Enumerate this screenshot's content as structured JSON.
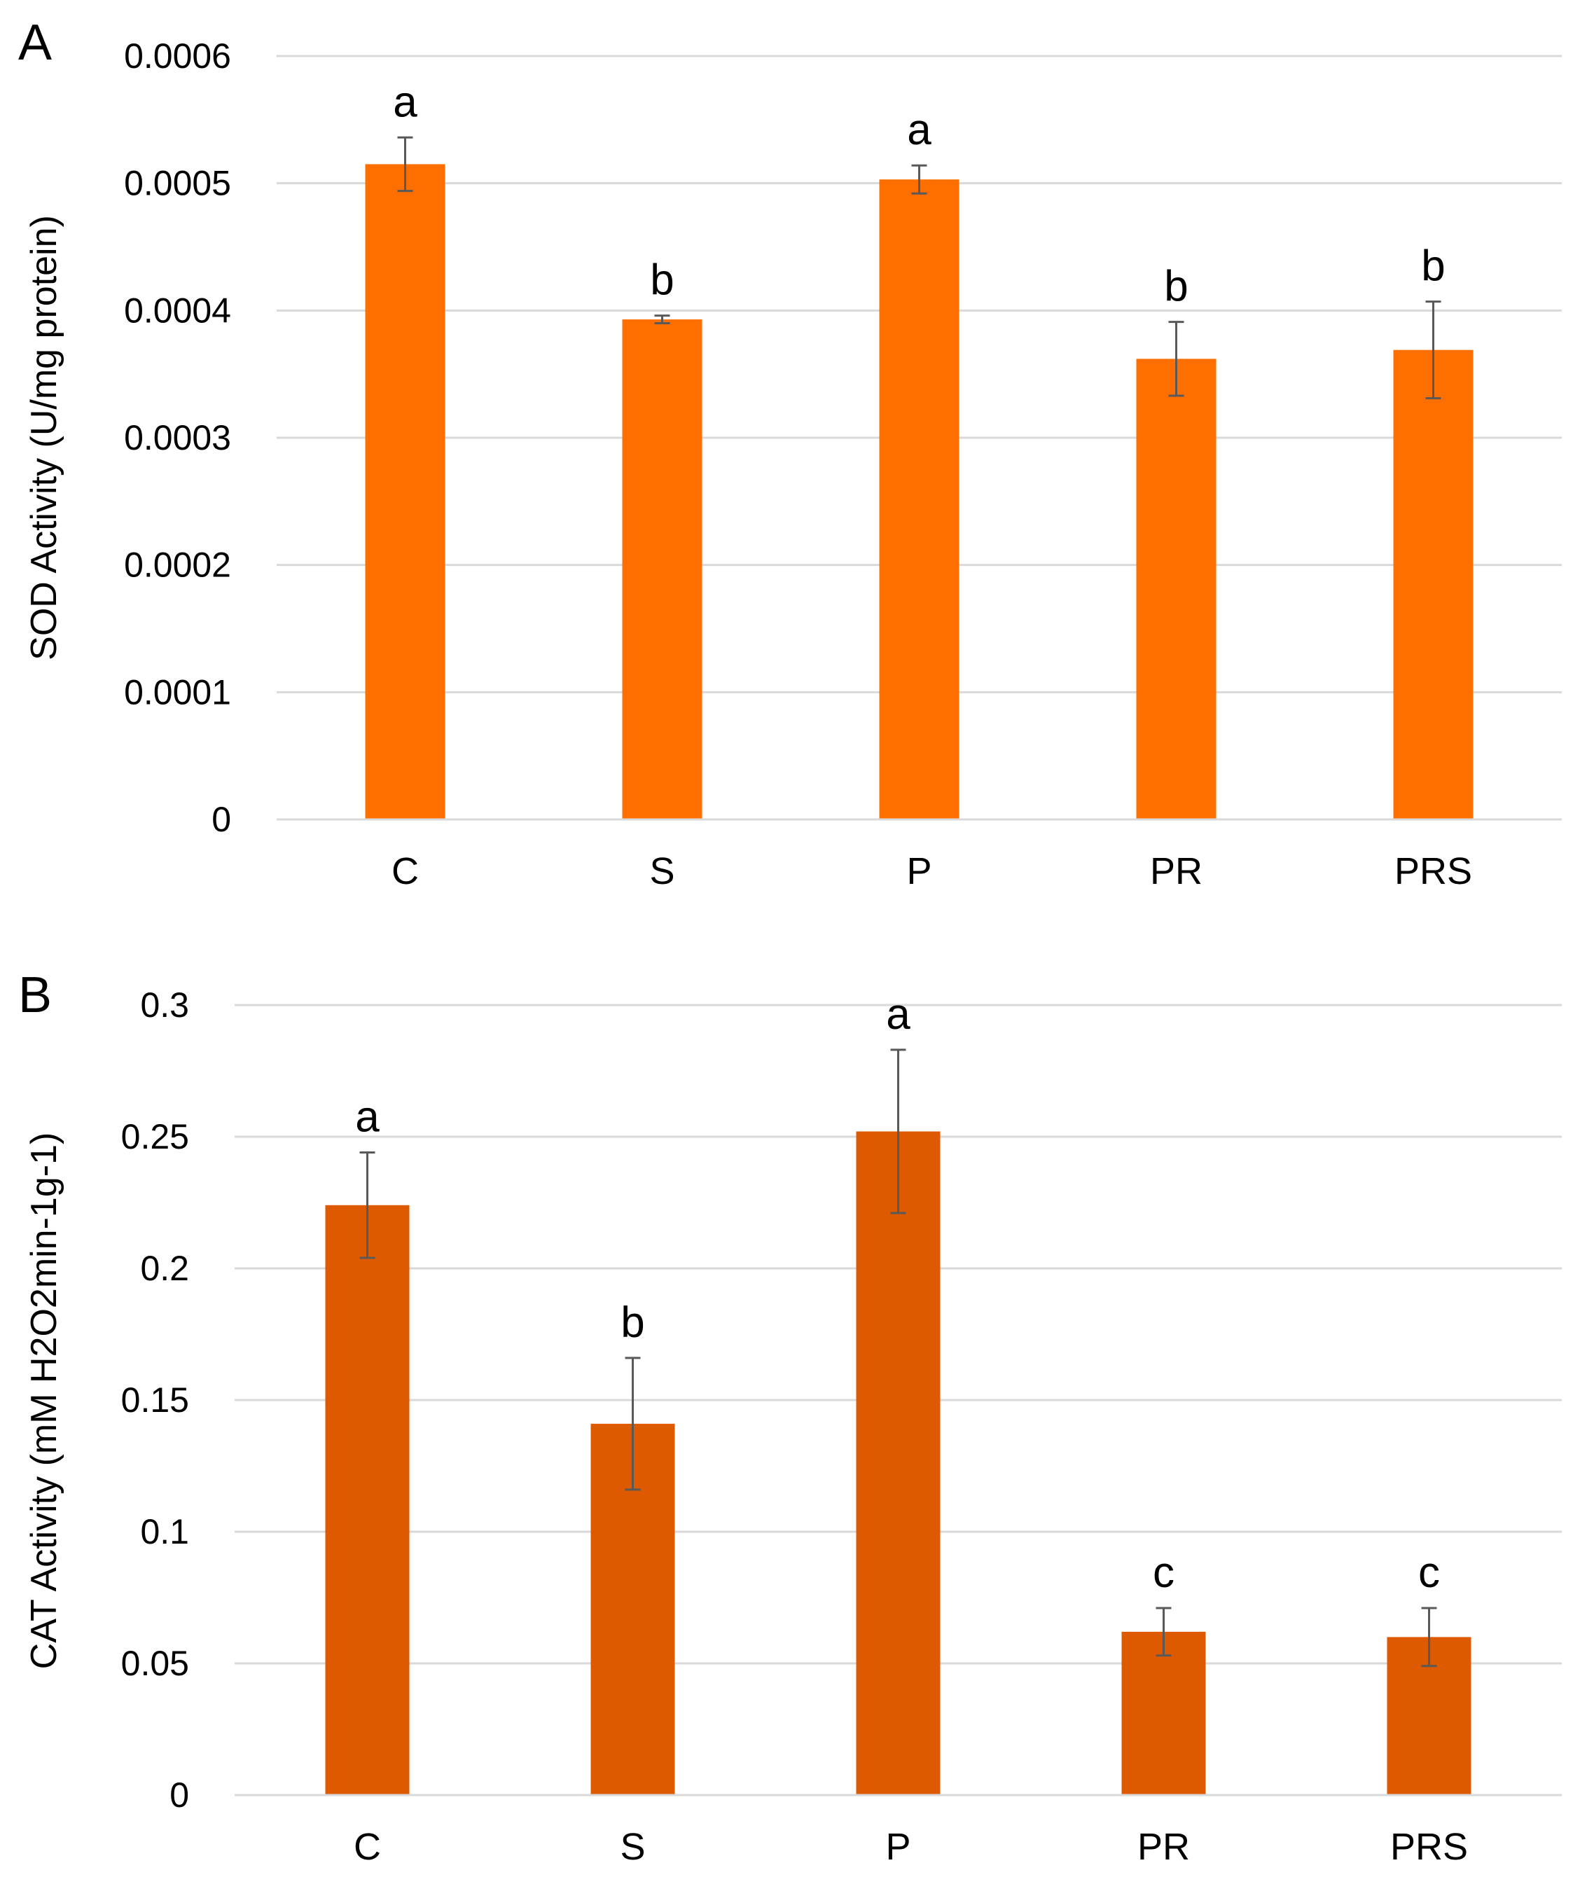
{
  "chart_data": [
    {
      "type": "bar",
      "panel_label": "A",
      "categories": [
        "C",
        "S",
        "P",
        "PR",
        "PRS"
      ],
      "values": [
        0.000515,
        0.000393,
        0.000503,
        0.000362,
        0.000369
      ],
      "errors": [
        2.1e-05,
        3e-06,
        1.1e-05,
        2.9e-05,
        3.8e-05
      ],
      "significance": [
        "a",
        "b",
        "a",
        "b",
        "b"
      ],
      "ylabel": "SOD Activity (U/mg protein)",
      "xlabel": "",
      "ylim": [
        0,
        0.0006
      ],
      "yticks": [
        "0",
        "0.0001",
        "0.0002",
        "0.0003",
        "0.0004",
        "0.0005",
        "0.0006"
      ],
      "grid": true,
      "color": "#FF6F00"
    },
    {
      "type": "bar",
      "panel_label": "B",
      "categories": [
        "C",
        "S",
        "P",
        "PR",
        "PRS"
      ],
      "values": [
        0.224,
        0.141,
        0.252,
        0.062,
        0.06
      ],
      "errors": [
        0.02,
        0.025,
        0.031,
        0.009,
        0.011
      ],
      "significance": [
        "a",
        "b",
        "a",
        "c",
        "c"
      ],
      "ylabel": "CAT Activity (mM H2O2min-1g-1)",
      "xlabel": "",
      "ylim": [
        0,
        0.3
      ],
      "yticks": [
        "0",
        "0.05",
        "0.1",
        "0.15",
        "0.2",
        "0.25",
        "0.3"
      ],
      "grid": true,
      "color": "#DD5A00"
    }
  ]
}
